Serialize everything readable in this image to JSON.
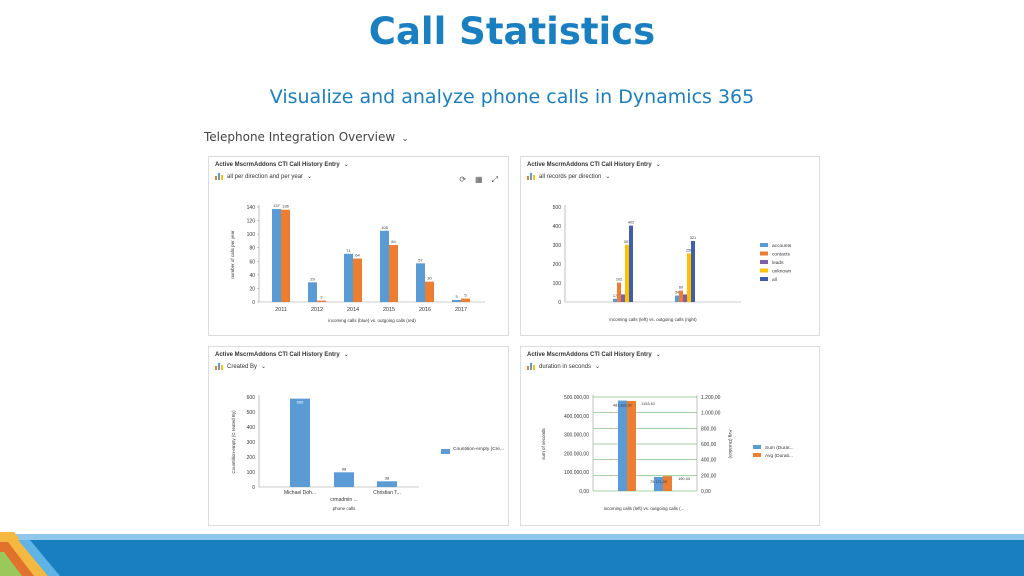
{
  "slide": {
    "title": "Call Statistics",
    "subtitle": "Visualize and analyze phone calls in Dynamics 365"
  },
  "dashboard": {
    "title": "Telephone Integration Overview",
    "chevron_icon": "chevron-down-icon"
  },
  "colors": {
    "blue": "#5b9bd5",
    "orange": "#ed7d31",
    "purple": "#7e60a8",
    "yellow": "#ffc000",
    "navy": "#3f5fad",
    "green": "#70ad47",
    "brand": "#1a7fc1"
  },
  "panels": [
    {
      "header": "Active MscrmAddons CTI Call History Entry",
      "view": "all per direction and per year",
      "toolbar": [
        "refresh-icon",
        "grid-icon",
        "expand-icon"
      ]
    },
    {
      "header": "Active MscrmAddons CTI Call History Entry",
      "view": "all records per direction"
    },
    {
      "header": "Active MscrmAddons CTI Call History Entry",
      "view": "Created By"
    },
    {
      "header": "Active MscrmAddons CTI Call History Entry",
      "view": "duration in seconds"
    }
  ],
  "chart_data": [
    {
      "type": "bar",
      "categories": [
        "2011",
        "2012",
        "2014",
        "2015",
        "2016",
        "2017"
      ],
      "series": [
        {
          "values": [
            137,
            29,
            71,
            105,
            57,
            3
          ],
          "color": "#5b9bd5"
        },
        {
          "values": [
            136,
            2,
            64,
            84,
            30,
            5
          ],
          "color": "#ed7d31"
        }
      ],
      "ylabel": "number of calls per year",
      "xlabel": "incoming calls (blue)   vs.   outgoing calls (red)",
      "ylim": [
        0,
        140
      ],
      "yticks": [
        "0",
        "20",
        "40",
        "60",
        "80",
        "100",
        "120",
        "140"
      ],
      "grid": false
    },
    {
      "type": "bar",
      "categories": [
        "",
        ""
      ],
      "series": [
        {
          "name": "accounts",
          "values": [
            17,
            34
          ],
          "color": "#5b9bd5"
        },
        {
          "name": "contacts",
          "values": [
            102,
            60
          ],
          "color": "#ed7d31"
        },
        {
          "name": "leads",
          "values": [
            40,
            40
          ],
          "color": "#7e60a8"
        },
        {
          "name": "unknown",
          "values": [
            301,
            256
          ],
          "color": "#ffc000"
        },
        {
          "name": "all",
          "values": [
            402,
            321
          ],
          "color": "#3f5fad"
        }
      ],
      "labels": [
        [
          "17",
          "102",
          "",
          "301",
          "402"
        ],
        [
          "34",
          "60",
          "",
          "256",
          "321"
        ]
      ],
      "xlabel": "incoming calls (left)   vs.   outgoing calls (right)",
      "ylim": [
        0,
        500
      ],
      "yticks": [
        "0",
        "100",
        "200",
        "300",
        "400",
        "500"
      ],
      "legend": "right",
      "grid": false
    },
    {
      "type": "bar",
      "categories": [
        "Michael Doh...",
        "crmadmin ...",
        "Christian T..."
      ],
      "series": [
        {
          "name": "Countition-empty (Cre...",
          "values": [
            589,
            98,
            38
          ],
          "color": "#5b9bd5"
        }
      ],
      "labels": [
        "589",
        "98",
        "38"
      ],
      "ylabel": "CountIition-empty (C reated By)",
      "xlabel": "phone calls",
      "ylim": [
        0,
        600
      ],
      "yticks": [
        "0",
        "100",
        "200",
        "300",
        "400",
        "500",
        "600"
      ],
      "legend": "right",
      "grid": false
    },
    {
      "type": "bar",
      "categories": [
        "",
        ""
      ],
      "series": [
        {
          "name": "Sum (Durat...",
          "values": [
            481000,
            75000
          ],
          "color": "#5b9bd5",
          "axis": "left"
        },
        {
          "name": "Avg (Durati...",
          "values": [
            1150,
            190
          ],
          "color": "#ed7d31",
          "axis": "right"
        }
      ],
      "labels": [
        [
          "481.332,31",
          "1153,40"
        ],
        [
          "75.171,00",
          "190,53"
        ]
      ],
      "ylabel": "sum of seconds",
      "y2label": "Avg (Duration)",
      "xlabel": "incoming calls (left)  vs.  outgoing calls (...",
      "ylim": [
        0,
        500000
      ],
      "y2lim": [
        0,
        1200
      ],
      "yticks": [
        "0,00",
        "100.000,00",
        "200.000,00",
        "300.000,00",
        "400.000,00",
        "500.000,00"
      ],
      "y2ticks": [
        "0,00",
        "200,00",
        "400,00",
        "600,00",
        "800,00",
        "1.000,00",
        "1.200,00"
      ],
      "legend": "right",
      "grid": true
    }
  ]
}
